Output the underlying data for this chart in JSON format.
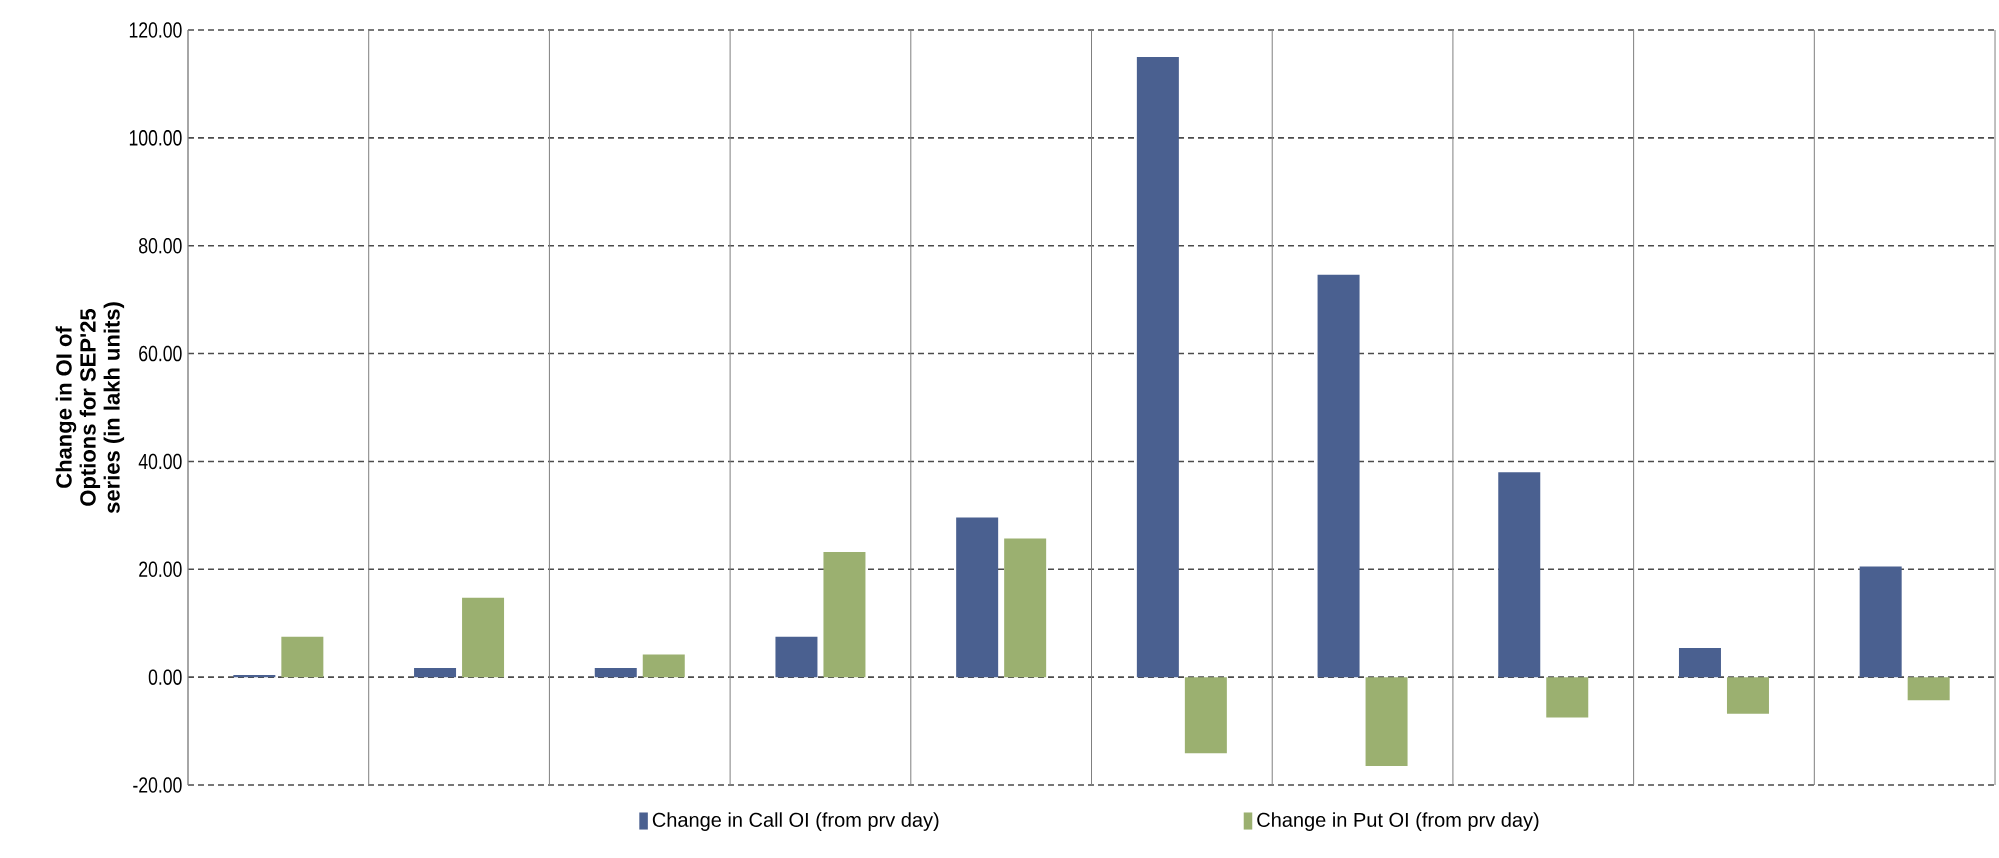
{
  "chart_data": {
    "type": "bar",
    "ylabel": "Change in OI of Options for SEP'25 series (in lakh units)",
    "categories": [
      null,
      null,
      null,
      null,
      null,
      null,
      null,
      null,
      null,
      null
    ],
    "series": [
      {
        "name": "Change in Call OI (from prv day)",
        "color": "#4a6090",
        "values": [
          0.4,
          1.7,
          1.7,
          7.5,
          29.6,
          115,
          74.6,
          38.0,
          5.4,
          20.5
        ]
      },
      {
        "name": "Change in Put OI (from prv day)",
        "color": "#9bb070",
        "values": [
          7.5,
          14.7,
          4.2,
          23.2,
          25.7,
          -14.1,
          -16.5,
          -7.5,
          -6.8,
          -4.3
        ]
      }
    ],
    "ylim": [
      -20,
      120
    ],
    "yticks": [
      {
        "value": -20,
        "label": "-20.00"
      },
      {
        "value": 0,
        "label": "0.00"
      },
      {
        "value": 20,
        "label": "20.00"
      },
      {
        "value": 40,
        "label": "40.00"
      },
      {
        "value": 60,
        "label": "60.00"
      },
      {
        "value": 80,
        "label": "80.00"
      },
      {
        "value": 100,
        "label": "100.00"
      },
      {
        "value": 120,
        "label": "120.00"
      }
    ],
    "grid": true,
    "legend": "bottom"
  }
}
